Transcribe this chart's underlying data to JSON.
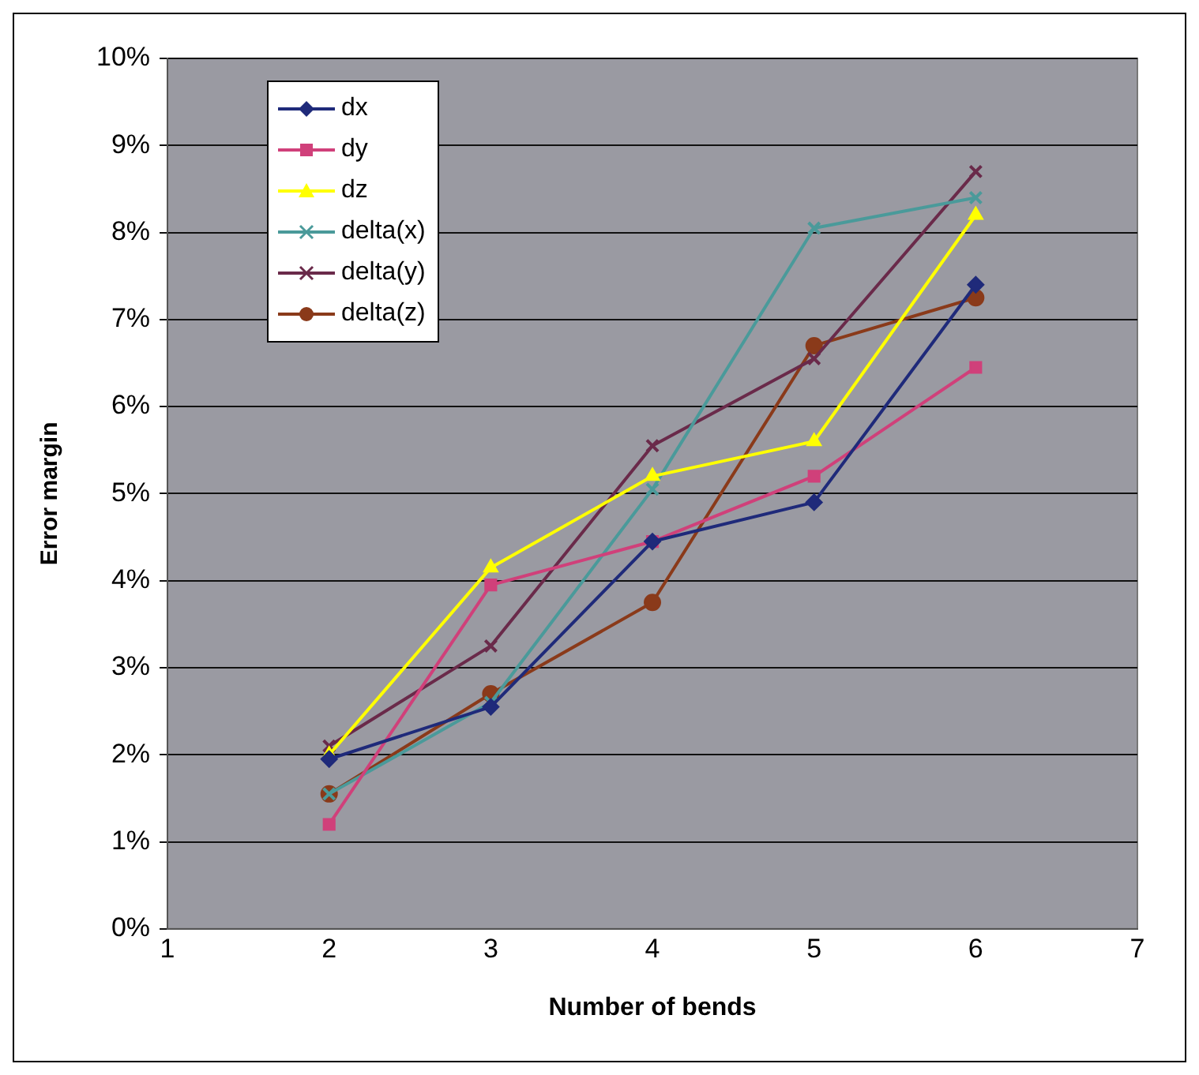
{
  "chart_data": {
    "type": "line",
    "xlabel": "Number of bends",
    "ylabel": "Error margin",
    "x": [
      2,
      3,
      4,
      5,
      6
    ],
    "series": [
      {
        "name": "dx",
        "color": "#1f2a7a",
        "marker": "diamond",
        "values": [
          1.95,
          2.55,
          4.45,
          4.9,
          7.4
        ]
      },
      {
        "name": "dy",
        "color": "#d0407a",
        "marker": "square",
        "values": [
          1.2,
          3.95,
          4.45,
          5.2,
          6.45
        ]
      },
      {
        "name": "dz",
        "color": "#ffff00",
        "marker": "triangle",
        "values": [
          2.0,
          4.15,
          5.2,
          5.6,
          8.2
        ]
      },
      {
        "name": "delta(x)",
        "color": "#4a9a9a",
        "marker": "cross",
        "values": [
          1.55,
          2.6,
          5.05,
          8.05,
          8.4
        ]
      },
      {
        "name": "delta(y)",
        "color": "#6a2a4a",
        "marker": "cross",
        "values": [
          2.1,
          3.25,
          5.55,
          6.55,
          8.7
        ]
      },
      {
        "name": "delta(z)",
        "color": "#8a3a1a",
        "marker": "circle",
        "values": [
          1.55,
          2.7,
          3.75,
          6.7,
          7.25
        ]
      }
    ],
    "xlim": [
      1,
      7
    ],
    "xticks": [
      1,
      2,
      3,
      4,
      5,
      6,
      7
    ],
    "ylim": [
      0,
      10
    ],
    "yticks": [
      {
        "value": 0,
        "label": "0%"
      },
      {
        "value": 1,
        "label": "1%"
      },
      {
        "value": 2,
        "label": "2%"
      },
      {
        "value": 3,
        "label": "3%"
      },
      {
        "value": 4,
        "label": "4%"
      },
      {
        "value": 5,
        "label": "5%"
      },
      {
        "value": 6,
        "label": "6%"
      },
      {
        "value": 7,
        "label": "7%"
      },
      {
        "value": 8,
        "label": "8%"
      },
      {
        "value": 9,
        "label": "9%"
      },
      {
        "value": 10,
        "label": "10%"
      }
    ],
    "grid": "y",
    "legend": "top left",
    "line_style": "solid"
  }
}
